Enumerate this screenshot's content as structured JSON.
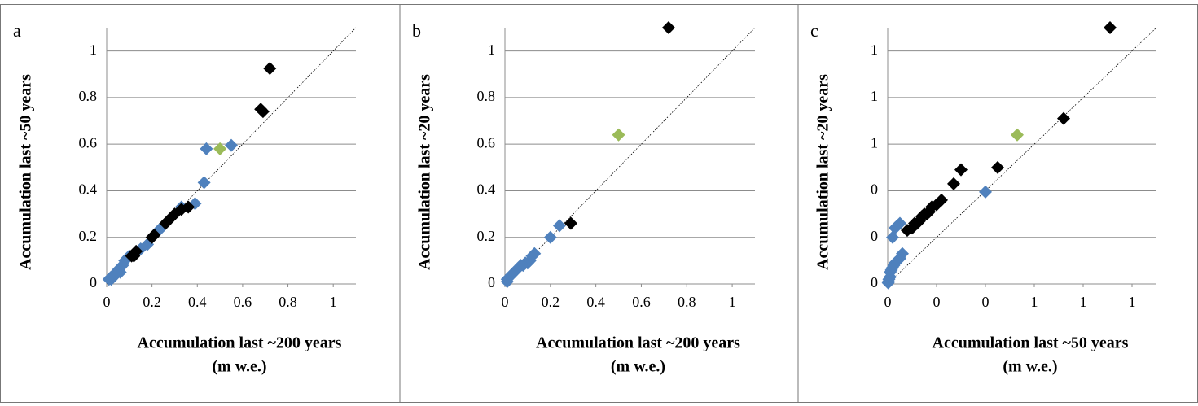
{
  "chart_data": [
    {
      "type": "scatter",
      "panel_label": "a",
      "xlabel": [
        "Accumulation last ~200 years",
        "(m w.e.)"
      ],
      "ylabel": "Accumulation last ~50 years",
      "xlim": [
        0,
        1.1
      ],
      "ylim": [
        0,
        1.1
      ],
      "xticks": [
        0,
        0.2,
        0.4,
        0.6,
        0.8,
        1
      ],
      "yticks": [
        0,
        0.2,
        0.4,
        0.6,
        0.8,
        1
      ],
      "grid": true,
      "series": [
        {
          "color": "#4f81bd",
          "x": [
            0.55,
            0.44,
            0.43,
            0.39,
            0.33,
            0.24,
            0.23,
            0.18,
            0.15,
            0.1,
            0.09,
            0.08,
            0.07,
            0.06,
            0.05,
            0.05,
            0.04,
            0.03,
            0.02,
            0.02,
            0.01,
            0.03,
            0.06
          ],
          "values": [
            0.595,
            0.58,
            0.435,
            0.345,
            0.33,
            0.24,
            0.23,
            0.17,
            0.15,
            0.12,
            0.11,
            0.1,
            0.08,
            0.07,
            0.06,
            0.05,
            0.04,
            0.035,
            0.03,
            0.02,
            0.02,
            0.03,
            0.05
          ]
        },
        {
          "color": "#000000",
          "x": [
            0.72,
            0.68,
            0.69,
            0.36,
            0.33,
            0.3,
            0.29,
            0.27,
            0.26,
            0.21,
            0.2,
            0.13,
            0.12,
            0.11
          ],
          "values": [
            0.925,
            0.75,
            0.74,
            0.33,
            0.32,
            0.3,
            0.29,
            0.27,
            0.26,
            0.21,
            0.2,
            0.14,
            0.12,
            0.12
          ]
        },
        {
          "color": "#9bbb59",
          "x": [
            0.5
          ],
          "values": [
            0.58
          ]
        }
      ]
    },
    {
      "type": "scatter",
      "panel_label": "b",
      "xlabel": [
        "Accumulation last ~200 years",
        "(m w.e.)"
      ],
      "ylabel": "Accumulation last ~20 years",
      "xlim": [
        0,
        1.1
      ],
      "ylim": [
        0,
        1.1
      ],
      "xticks": [
        0,
        0.2,
        0.4,
        0.6,
        0.8,
        1
      ],
      "yticks": [
        0,
        0.2,
        0.4,
        0.6,
        0.8,
        1
      ],
      "grid": true,
      "series": [
        {
          "color": "#4f81bd",
          "x": [
            0.24,
            0.2,
            0.13,
            0.12,
            0.11,
            0.1,
            0.09,
            0.08,
            0.07,
            0.06,
            0.05,
            0.04,
            0.03,
            0.02,
            0.01,
            0.01
          ],
          "values": [
            0.25,
            0.2,
            0.13,
            0.12,
            0.1,
            0.09,
            0.09,
            0.08,
            0.08,
            0.07,
            0.06,
            0.05,
            0.04,
            0.03,
            0.02,
            0.01
          ]
        },
        {
          "color": "#000000",
          "x": [
            0.72,
            0.29
          ],
          "values": [
            1.1,
            0.26
          ]
        },
        {
          "color": "#9bbb59",
          "x": [
            0.5
          ],
          "values": [
            0.64
          ]
        }
      ]
    },
    {
      "type": "scatter",
      "panel_label": "c",
      "xlabel": [
        "Accumulation last ~50 years",
        "(m w.e.)"
      ],
      "ylabel": "Accumulation  last ~20 years",
      "xlim": [
        0,
        1.1
      ],
      "ylim": [
        0,
        1.1
      ],
      "xticks": [
        {
          "value": 0,
          "label": "0"
        },
        {
          "value": 0.2,
          "label": "0"
        },
        {
          "value": 0.4,
          "label": "0"
        },
        {
          "value": 0.6,
          "label": "1"
        },
        {
          "value": 0.8,
          "label": "1"
        },
        {
          "value": 1,
          "label": "1"
        }
      ],
      "yticks": [
        {
          "value": 0,
          "label": "0"
        },
        {
          "value": 0.2,
          "label": "0"
        },
        {
          "value": 0.4,
          "label": "0"
        },
        {
          "value": 0.6,
          "label": "1"
        },
        {
          "value": 0.8,
          "label": "1"
        },
        {
          "value": 1,
          "label": "1"
        }
      ],
      "grid": true,
      "series": [
        {
          "color": "#4f81bd",
          "x": [
            0.4,
            0.05,
            0.04,
            0.03,
            0.02,
            0.06,
            0.05,
            0.04,
            0.03,
            0.025,
            0.02,
            0.015,
            0.01,
            0.01,
            0.005,
            0.003,
            0.002
          ],
          "values": [
            0.395,
            0.26,
            0.25,
            0.24,
            0.2,
            0.13,
            0.11,
            0.1,
            0.09,
            0.08,
            0.07,
            0.06,
            0.05,
            0.03,
            0.02,
            0.01,
            0.005
          ]
        },
        {
          "color": "#000000",
          "x": [
            0.91,
            0.72,
            0.45,
            0.3,
            0.27,
            0.22,
            0.2,
            0.18,
            0.17,
            0.16,
            0.15,
            0.14,
            0.13,
            0.12,
            0.11,
            0.1,
            0.08
          ],
          "values": [
            1.1,
            0.71,
            0.5,
            0.49,
            0.43,
            0.36,
            0.34,
            0.33,
            0.31,
            0.3,
            0.3,
            0.29,
            0.27,
            0.26,
            0.26,
            0.24,
            0.23
          ]
        },
        {
          "color": "#9bbb59",
          "x": [
            0.53
          ],
          "values": [
            0.64
          ]
        }
      ]
    }
  ]
}
